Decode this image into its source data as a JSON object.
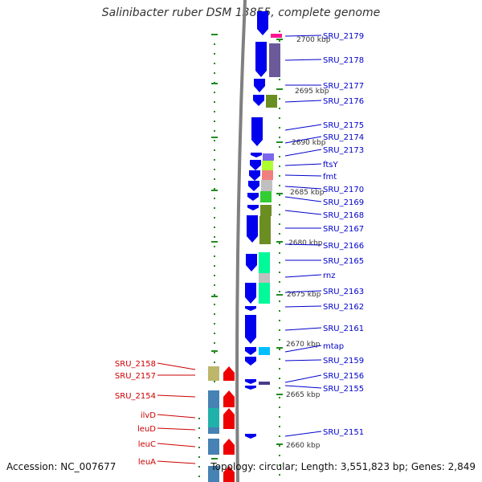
{
  "title": "Salinibacter ruber DSM 13855, complete genome",
  "footer": {
    "accession": "Accession: NC_007677",
    "summary": "Topology: circular; Length: 3,551,823 bp; Genes: 2,849"
  },
  "scale": {
    "unit_label_suffix": " kbp",
    "ticks": [
      {
        "kbp": 2700,
        "label": "2700 kbp"
      },
      {
        "kbp": 2695,
        "label": "2695 kbp"
      },
      {
        "kbp": 2690,
        "label": "2690 kbp"
      },
      {
        "kbp": 2685,
        "label": "2685 kbp"
      },
      {
        "kbp": 2680,
        "label": "2680 kbp"
      },
      {
        "kbp": 2675,
        "label": "2675 kbp"
      },
      {
        "kbp": 2670,
        "label": "2670 kbp"
      },
      {
        "kbp": 2665,
        "label": "2665 kbp"
      },
      {
        "kbp": 2660,
        "label": "2660 kbp"
      }
    ]
  },
  "colors": {
    "backbone": "#808080",
    "forward_strand": "#0000ee",
    "reverse_strand": "#ee0000",
    "forward_label": "#0000cc",
    "reverse_label": "#cc0000",
    "tick_green": "#228b22"
  },
  "genes_forward": [
    {
      "label": "SRU_2179",
      "cog_color": "#ff1493"
    },
    {
      "label": "SRU_2178",
      "cog_color": "#6a5a9a"
    },
    {
      "label": "SRU_2177",
      "cog_color": ""
    },
    {
      "label": "SRU_2176",
      "cog_color": "#6b8e23"
    },
    {
      "label": "SRU_2175",
      "cog_color": ""
    },
    {
      "label": "SRU_2174",
      "cog_color": ""
    },
    {
      "label": "SRU_2173",
      "cog_color": "#7b68ee"
    },
    {
      "label": "ftsY",
      "cog_color": "#adff2f"
    },
    {
      "label": "fmt",
      "cog_color": "#f08080"
    },
    {
      "label": "SRU_2170",
      "cog_color": "#c0c0c0"
    },
    {
      "label": "SRU_2169",
      "cog_color": "#32cd32"
    },
    {
      "label": "SRU_2168",
      "cog_color": "#6b8e23"
    },
    {
      "label": "SRU_2167",
      "cog_color": "#6b8e23"
    },
    {
      "label": "SRU_2166",
      "cog_color": ""
    },
    {
      "label": "SRU_2165",
      "cog_color": "#00fa9a"
    },
    {
      "label": "rnz",
      "cog_color": "#c0c0c0"
    },
    {
      "label": "SRU_2163",
      "cog_color": "#00fa9a"
    },
    {
      "label": "SRU_2162",
      "cog_color": ""
    },
    {
      "label": "SRU_2161",
      "cog_color": ""
    },
    {
      "label": "mtap",
      "cog_color": "#00bfff"
    },
    {
      "label": "SRU_2159",
      "cog_color": ""
    },
    {
      "label": "SRU_2156",
      "cog_color": ""
    },
    {
      "label": "SRU_2155",
      "cog_color": "#483d8b"
    },
    {
      "label": "SRU_2151",
      "cog_color": ""
    }
  ],
  "genes_reverse": [
    {
      "label": "SRU_2158",
      "cog_color": "#bdb76b"
    },
    {
      "label": "SRU_2157",
      "cog_color": "#bdb76b"
    },
    {
      "label": "SRU_2154",
      "cog_color": "#4682b4"
    },
    {
      "label": "ilvD",
      "cog_color": "#20b2aa"
    },
    {
      "label": "leuD",
      "cog_color": "#4682b4"
    },
    {
      "label": "leuC",
      "cog_color": "#4682b4"
    },
    {
      "label": "leuA",
      "cog_color": "#4682b4"
    }
  ]
}
